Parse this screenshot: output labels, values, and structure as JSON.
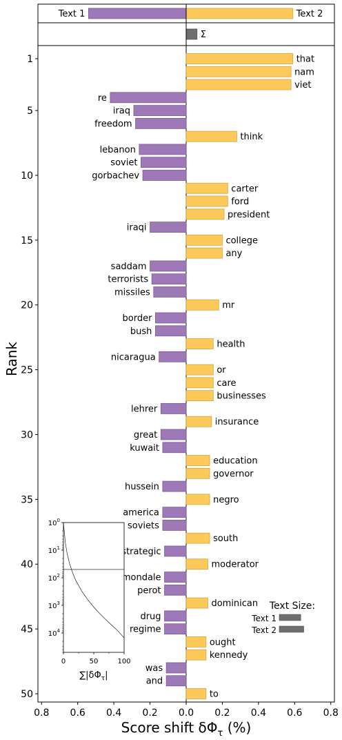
{
  "chart_data": {
    "type": "bar",
    "orientation": "horizontal",
    "xlabel": "Score shift δΦ",
    "xlabel_sub": "τ",
    "xlabel_suffix": " (%)",
    "ylabel": "Rank",
    "xlim": [
      -0.82,
      0.82
    ],
    "x_ticks": [
      -0.8,
      -0.6,
      -0.4,
      -0.2,
      0,
      0.2,
      0.4,
      0.6,
      0.8
    ],
    "x_tick_labels": [
      "0.8",
      "0.6",
      "0.4",
      "0.2",
      "0.0",
      "0.2",
      "0.4",
      "0.6",
      "0.8"
    ],
    "y_ticks": [
      1,
      5,
      10,
      15,
      20,
      25,
      30,
      35,
      40,
      45,
      50
    ],
    "colors": {
      "text1": "#9e79b8",
      "text2": "#fdc95a",
      "sum": "#6e6e6e"
    },
    "totals": {
      "text1_label": "Text 1",
      "text2_label": "Text 2",
      "text1_value": -0.54,
      "text2_value": 0.59,
      "sum_label": "Σ",
      "sum_value": 0.06
    },
    "words": [
      {
        "rank": 1,
        "word": "that",
        "value": 0.59
      },
      {
        "rank": 2,
        "word": "nam",
        "value": 0.58
      },
      {
        "rank": 3,
        "word": "viet",
        "value": 0.58
      },
      {
        "rank": 4,
        "word": "re",
        "value": -0.42
      },
      {
        "rank": 5,
        "word": "iraq",
        "value": -0.29
      },
      {
        "rank": 6,
        "word": "freedom",
        "value": -0.28
      },
      {
        "rank": 7,
        "word": "think",
        "value": 0.28
      },
      {
        "rank": 8,
        "word": "lebanon",
        "value": -0.26
      },
      {
        "rank": 9,
        "word": "soviet",
        "value": -0.25
      },
      {
        "rank": 10,
        "word": "gorbachev",
        "value": -0.24
      },
      {
        "rank": 11,
        "word": "carter",
        "value": 0.23
      },
      {
        "rank": 12,
        "word": "ford",
        "value": 0.23
      },
      {
        "rank": 13,
        "word": "president",
        "value": 0.21
      },
      {
        "rank": 14,
        "word": "iraqi",
        "value": -0.2
      },
      {
        "rank": 15,
        "word": "college",
        "value": 0.2
      },
      {
        "rank": 16,
        "word": "any",
        "value": 0.2
      },
      {
        "rank": 17,
        "word": "saddam",
        "value": -0.2
      },
      {
        "rank": 18,
        "word": "terrorists",
        "value": -0.19
      },
      {
        "rank": 19,
        "word": "missiles",
        "value": -0.18
      },
      {
        "rank": 20,
        "word": "mr",
        "value": 0.18
      },
      {
        "rank": 21,
        "word": "border",
        "value": -0.17
      },
      {
        "rank": 22,
        "word": "bush",
        "value": -0.17
      },
      {
        "rank": 23,
        "word": "health",
        "value": 0.15
      },
      {
        "rank": 24,
        "word": "nicaragua",
        "value": -0.15
      },
      {
        "rank": 25,
        "word": "or",
        "value": 0.15
      },
      {
        "rank": 26,
        "word": "care",
        "value": 0.15
      },
      {
        "rank": 27,
        "word": "businesses",
        "value": 0.15
      },
      {
        "rank": 28,
        "word": "lehrer",
        "value": -0.14
      },
      {
        "rank": 29,
        "word": "insurance",
        "value": 0.14
      },
      {
        "rank": 30,
        "word": "great",
        "value": -0.14
      },
      {
        "rank": 31,
        "word": "kuwait",
        "value": -0.13
      },
      {
        "rank": 32,
        "word": "education",
        "value": 0.13
      },
      {
        "rank": 33,
        "word": "governor",
        "value": 0.13
      },
      {
        "rank": 34,
        "word": "hussein",
        "value": -0.13
      },
      {
        "rank": 35,
        "word": "negro",
        "value": 0.13
      },
      {
        "rank": 36,
        "word": "america",
        "value": -0.13
      },
      {
        "rank": 37,
        "word": "soviets",
        "value": -0.13
      },
      {
        "rank": 38,
        "word": "south",
        "value": 0.13
      },
      {
        "rank": 39,
        "word": "strategic",
        "value": -0.12
      },
      {
        "rank": 40,
        "word": "moderator",
        "value": 0.12
      },
      {
        "rank": 41,
        "word": "mondale",
        "value": -0.12
      },
      {
        "rank": 42,
        "word": "perot",
        "value": -0.12
      },
      {
        "rank": 43,
        "word": "dominican",
        "value": 0.12
      },
      {
        "rank": 44,
        "word": "drug",
        "value": -0.12
      },
      {
        "rank": 45,
        "word": "regime",
        "value": -0.12
      },
      {
        "rank": 46,
        "word": "ought",
        "value": 0.11
      },
      {
        "rank": 47,
        "word": "kennedy",
        "value": 0.11
      },
      {
        "rank": 48,
        "word": "was",
        "value": -0.11
      },
      {
        "rank": 49,
        "word": "and",
        "value": -0.11
      },
      {
        "rank": 50,
        "word": "to",
        "value": 0.11
      }
    ],
    "inset": {
      "type": "line",
      "xlabel": "∑|δΦ",
      "xlabel_sub": "τ",
      "xlabel_suffix": "|",
      "xlim": [
        0,
        100
      ],
      "x_ticks": [
        0,
        50,
        100
      ],
      "y_scale": "log",
      "y_ticks": [
        {
          "base": "10",
          "exp": "0",
          "value": 1
        },
        {
          "base": "10",
          "exp": "1",
          "value": 10
        },
        {
          "base": "10",
          "exp": "2",
          "value": 100
        },
        {
          "base": "10",
          "exp": "3",
          "value": 1000
        },
        {
          "base": "10",
          "exp": "4",
          "value": 10000
        }
      ],
      "cutoff_rank": 50,
      "curve": [
        {
          "x": 0,
          "y": 1
        },
        {
          "x": 3,
          "y": 5
        },
        {
          "x": 6,
          "y": 13
        },
        {
          "x": 10,
          "y": 30
        },
        {
          "x": 15,
          "y": 65
        },
        {
          "x": 20,
          "y": 120
        },
        {
          "x": 30,
          "y": 300
        },
        {
          "x": 40,
          "y": 620
        },
        {
          "x": 50,
          "y": 1150
        },
        {
          "x": 60,
          "y": 2000
        },
        {
          "x": 70,
          "y": 3300
        },
        {
          "x": 80,
          "y": 5300
        },
        {
          "x": 90,
          "y": 8500
        },
        {
          "x": 100,
          "y": 15000
        }
      ]
    },
    "text_size": {
      "title": "Text Size:",
      "text1_label": "Text 1",
      "text2_label": "Text 2",
      "text1_value": 0.65,
      "text2_value": 0.74
    }
  }
}
